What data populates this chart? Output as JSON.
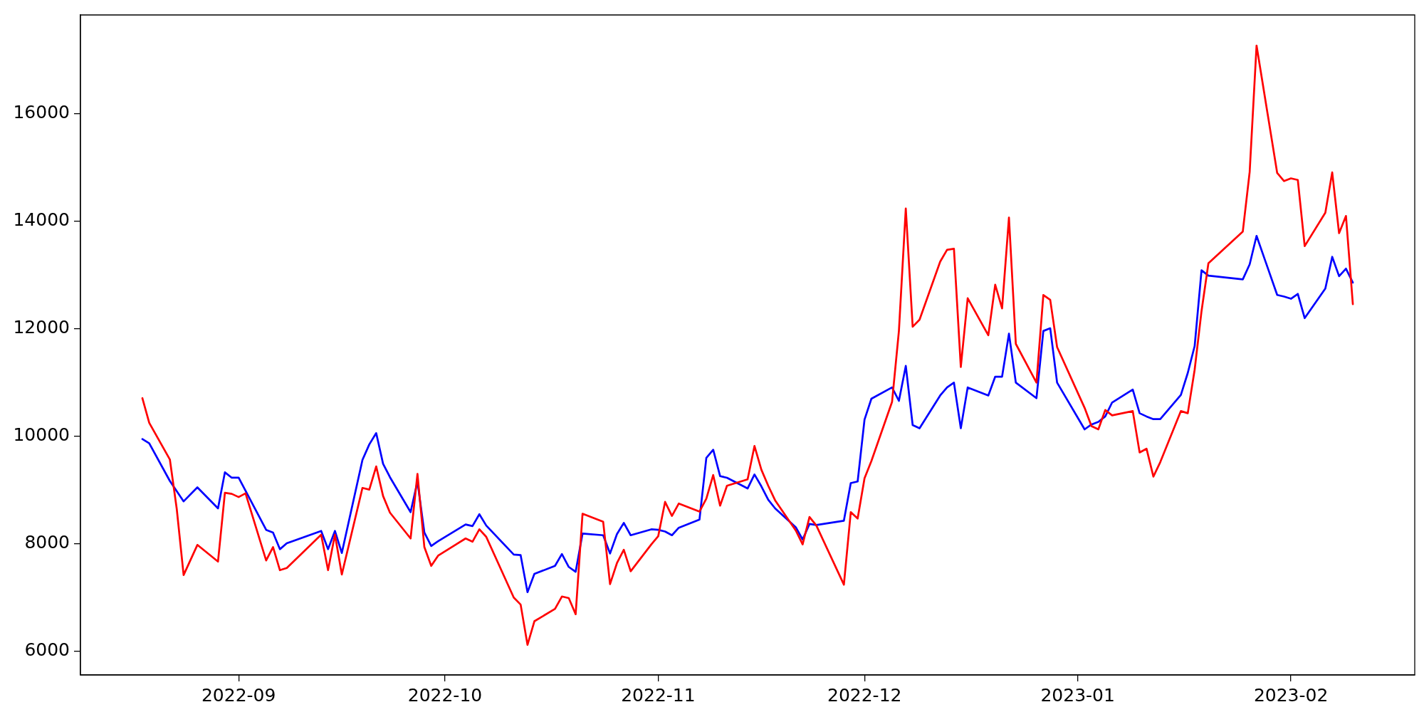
{
  "chart_data": {
    "type": "line",
    "legend": false,
    "grid": false,
    "xlim": [
      "2022-08-09",
      "2023-02-19"
    ],
    "xticks": [
      "2022-09",
      "2022-10",
      "2022-11",
      "2022-12",
      "2023-01",
      "2023-02"
    ],
    "ylim": [
      5560,
      17840
    ],
    "yticks": [
      6000,
      8000,
      10000,
      12000,
      14000,
      16000
    ],
    "series": [
      {
        "color": "#ff0000",
        "x": [
          "2022-08-18",
          "2022-08-19",
          "2022-08-22",
          "2022-08-23",
          "2022-08-24",
          "2022-08-26",
          "2022-08-29",
          "2022-08-30",
          "2022-08-31",
          "2022-09-01",
          "2022-09-02",
          "2022-09-05",
          "2022-09-06",
          "2022-09-07",
          "2022-09-08",
          "2022-09-13",
          "2022-09-14",
          "2022-09-15",
          "2022-09-16",
          "2022-09-19",
          "2022-09-20",
          "2022-09-21",
          "2022-09-22",
          "2022-09-23",
          "2022-09-26",
          "2022-09-27",
          "2022-09-28",
          "2022-09-29",
          "2022-09-30",
          "2022-10-04",
          "2022-10-05",
          "2022-10-06",
          "2022-10-07",
          "2022-10-11",
          "2022-10-12",
          "2022-10-13",
          "2022-10-14",
          "2022-10-17",
          "2022-10-18",
          "2022-10-19",
          "2022-10-20",
          "2022-10-21",
          "2022-10-24",
          "2022-10-25",
          "2022-10-26",
          "2022-10-27",
          "2022-10-28",
          "2022-10-31",
          "2022-11-01",
          "2022-11-02",
          "2022-11-03",
          "2022-11-04",
          "2022-11-07",
          "2022-11-08",
          "2022-11-09",
          "2022-11-10",
          "2022-11-11",
          "2022-11-14",
          "2022-11-15",
          "2022-11-16",
          "2022-11-17",
          "2022-11-18",
          "2022-11-21",
          "2022-11-22",
          "2022-11-23",
          "2022-11-24",
          "2022-11-28",
          "2022-11-29",
          "2022-11-30",
          "2022-12-01",
          "2022-12-02",
          "2022-12-05",
          "2022-12-06",
          "2022-12-07",
          "2022-12-08",
          "2022-12-09",
          "2022-12-12",
          "2022-12-13",
          "2022-12-14",
          "2022-12-15",
          "2022-12-16",
          "2022-12-19",
          "2022-12-20",
          "2022-12-21",
          "2022-12-22",
          "2022-12-23",
          "2022-12-26",
          "2022-12-27",
          "2022-12-28",
          "2022-12-29",
          "2023-01-02",
          "2023-01-03",
          "2023-01-04",
          "2023-01-05",
          "2023-01-06",
          "2023-01-09",
          "2023-01-10",
          "2023-01-11",
          "2023-01-12",
          "2023-01-13",
          "2023-01-16",
          "2023-01-17",
          "2023-01-18",
          "2023-01-19",
          "2023-01-20",
          "2023-01-25",
          "2023-01-26",
          "2023-01-27",
          "2023-01-30",
          "2023-01-31",
          "2023-02-01",
          "2023-02-02",
          "2023-02-03",
          "2023-02-06",
          "2023-02-07",
          "2023-02-08",
          "2023-02-09",
          "2023-02-10"
        ],
        "values": [
          10710,
          10250,
          9570,
          8650,
          7420,
          7980,
          7670,
          8950,
          8930,
          8870,
          8940,
          7690,
          7940,
          7510,
          7550,
          8170,
          7510,
          8170,
          7430,
          9040,
          9010,
          9440,
          8890,
          8580,
          8100,
          9300,
          7940,
          7590,
          7780,
          8100,
          8040,
          8270,
          8130,
          7000,
          6870,
          6120,
          6560,
          6790,
          7020,
          6990,
          6690,
          8560,
          8410,
          7250,
          7640,
          7890,
          7490,
          7990,
          8140,
          8780,
          8520,
          8750,
          8600,
          8840,
          9280,
          8710,
          9080,
          9200,
          9820,
          9380,
          9080,
          8810,
          8250,
          7990,
          8500,
          8340,
          7240,
          8590,
          8470,
          9220,
          9540,
          10640,
          11960,
          14240,
          12040,
          12170,
          13250,
          13470,
          13490,
          11290,
          12570,
          11880,
          12820,
          12380,
          14070,
          11720,
          11000,
          12630,
          12540,
          11660,
          10530,
          10190,
          10130,
          10490,
          10390,
          10470,
          9700,
          9770,
          9250,
          9520,
          10470,
          10430,
          11240,
          12330,
          13220,
          13810,
          14920,
          17270,
          14900,
          14750,
          14800,
          14770,
          13540,
          14160,
          14910,
          13780,
          14100,
          12460
        ]
      },
      {
        "color": "#0000ff",
        "x": [
          "2022-08-18",
          "2022-08-19",
          "2022-08-22",
          "2022-08-24",
          "2022-08-26",
          "2022-08-29",
          "2022-08-30",
          "2022-08-31",
          "2022-09-01",
          "2022-09-05",
          "2022-09-06",
          "2022-09-07",
          "2022-09-08",
          "2022-09-13",
          "2022-09-14",
          "2022-09-15",
          "2022-09-16",
          "2022-09-19",
          "2022-09-20",
          "2022-09-21",
          "2022-09-22",
          "2022-09-23",
          "2022-09-26",
          "2022-09-27",
          "2022-09-28",
          "2022-09-29",
          "2022-09-30",
          "2022-10-04",
          "2022-10-05",
          "2022-10-06",
          "2022-10-07",
          "2022-10-11",
          "2022-10-12",
          "2022-10-13",
          "2022-10-14",
          "2022-10-17",
          "2022-10-18",
          "2022-10-19",
          "2022-10-20",
          "2022-10-21",
          "2022-10-24",
          "2022-10-25",
          "2022-10-26",
          "2022-10-27",
          "2022-10-28",
          "2022-10-31",
          "2022-11-01",
          "2022-11-02",
          "2022-11-03",
          "2022-11-04",
          "2022-11-07",
          "2022-11-08",
          "2022-11-09",
          "2022-11-10",
          "2022-11-11",
          "2022-11-14",
          "2022-11-15",
          "2022-11-16",
          "2022-11-17",
          "2022-11-18",
          "2022-11-21",
          "2022-11-22",
          "2022-11-23",
          "2022-11-24",
          "2022-11-28",
          "2022-11-29",
          "2022-11-30",
          "2022-12-01",
          "2022-12-02",
          "2022-12-05",
          "2022-12-06",
          "2022-12-07",
          "2022-12-08",
          "2022-12-09",
          "2022-12-12",
          "2022-12-13",
          "2022-12-14",
          "2022-12-15",
          "2022-12-16",
          "2022-12-19",
          "2022-12-20",
          "2022-12-21",
          "2022-12-22",
          "2022-12-23",
          "2022-12-26",
          "2022-12-27",
          "2022-12-28",
          "2022-12-29",
          "2023-01-02",
          "2023-01-03",
          "2023-01-04",
          "2023-01-05",
          "2023-01-06",
          "2023-01-09",
          "2023-01-10",
          "2023-01-11",
          "2023-01-12",
          "2023-01-13",
          "2023-01-16",
          "2023-01-17",
          "2023-01-18",
          "2023-01-19",
          "2023-01-20",
          "2023-01-25",
          "2023-01-26",
          "2023-01-27",
          "2023-01-30",
          "2023-01-31",
          "2023-02-01",
          "2023-02-02",
          "2023-02-03",
          "2023-02-06",
          "2023-02-07",
          "2023-02-08",
          "2023-02-09",
          "2023-02-10"
        ],
        "values": [
          9950,
          9870,
          9170,
          8790,
          9050,
          8660,
          9330,
          9230,
          9230,
          8260,
          8210,
          7900,
          8010,
          8240,
          7900,
          8240,
          7830,
          9560,
          9850,
          10060,
          9490,
          9240,
          8590,
          9160,
          8210,
          7960,
          8050,
          8360,
          8330,
          8550,
          8340,
          7800,
          7790,
          7100,
          7440,
          7590,
          7810,
          7570,
          7480,
          8190,
          8160,
          7820,
          8180,
          8390,
          8160,
          8270,
          8260,
          8230,
          8160,
          8300,
          8450,
          9600,
          9750,
          9260,
          9230,
          9030,
          9290,
          9070,
          8820,
          8660,
          8310,
          8080,
          8370,
          8350,
          8430,
          9130,
          9160,
          10310,
          10700,
          10910,
          10660,
          11310,
          10210,
          10150,
          10760,
          10910,
          11000,
          10150,
          10910,
          10760,
          11110,
          11110,
          11910,
          11000,
          10710,
          11960,
          12010,
          11000,
          10130,
          10220,
          10270,
          10370,
          10630,
          10870,
          10430,
          10370,
          10320,
          10320,
          10770,
          11180,
          11680,
          13090,
          12990,
          12920,
          13200,
          13730,
          12630,
          12600,
          12560,
          12650,
          12200,
          12750,
          13340,
          12980,
          13120,
          12860
        ]
      }
    ]
  }
}
